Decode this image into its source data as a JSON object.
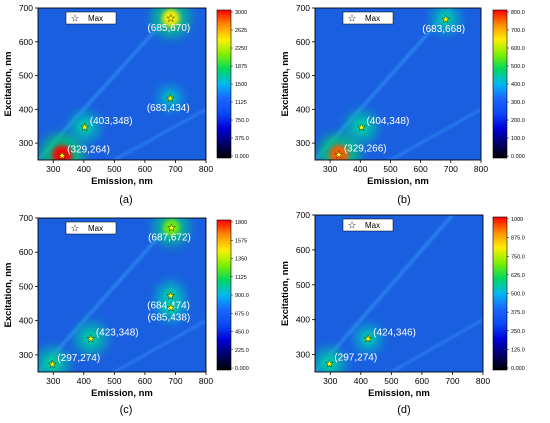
{
  "colors": {
    "background": "#1a5fe0",
    "colormap": [
      "#000000",
      "#00006a",
      "#0000d8",
      "#0b48f5",
      "#1a66ff",
      "#00b8f0",
      "#00d860",
      "#80f000",
      "#ffef00",
      "#ff8c00",
      "#ff0000"
    ],
    "marker": "#ffff00",
    "annotation": "#ffffff"
  },
  "chart_data": [
    {
      "type": "heatmap",
      "panel_label": "(a)",
      "xlabel": "Emission, nm",
      "ylabel": "Excitation, nm",
      "xlim": [
        250,
        800
      ],
      "ylim": [
        250,
        700
      ],
      "x_ticks": [
        "300",
        "400",
        "500",
        "600",
        "700",
        "800"
      ],
      "y_ticks": [
        "300",
        "400",
        "500",
        "600",
        "700"
      ],
      "legend": "Max",
      "colorbar_max": 3000,
      "colorbar_ticks": [
        "3000",
        "2625",
        "2250",
        "1875",
        "1500",
        "1125",
        "750.0",
        "375.0",
        "0.000"
      ],
      "peaks": [
        {
          "x": 329,
          "y": 264,
          "label": "(329,264)",
          "intensity": 3000
        },
        {
          "x": 403,
          "y": 348,
          "label": "(403,348)",
          "intensity": 1300
        },
        {
          "x": 683,
          "y": 434,
          "label": "(683,434)",
          "intensity": 600
        },
        {
          "x": 685,
          "y": 670,
          "label": "(685,670)",
          "intensity": 2400
        }
      ]
    },
    {
      "type": "heatmap",
      "panel_label": "(b)",
      "xlabel": "Emission, nm",
      "ylabel": "Excitation, nm",
      "xlim": [
        250,
        800
      ],
      "ylim": [
        250,
        700
      ],
      "x_ticks": [
        "300",
        "400",
        "500",
        "600",
        "700",
        "800"
      ],
      "y_ticks": [
        "300",
        "400",
        "500",
        "600",
        "700"
      ],
      "legend": "Max",
      "colorbar_max": 800,
      "colorbar_ticks": [
        "800.0",
        "700.0",
        "600.0",
        "500.0",
        "400.0",
        "300.0",
        "200.0",
        "100.0",
        "0.000"
      ],
      "peaks": [
        {
          "x": 329,
          "y": 266,
          "label": "(329,266)",
          "intensity": 750
        },
        {
          "x": 404,
          "y": 348,
          "label": "(404,348)",
          "intensity": 420
        },
        {
          "x": 683,
          "y": 668,
          "label": "(683,668)",
          "intensity": 320
        }
      ]
    },
    {
      "type": "heatmap",
      "panel_label": "(c)",
      "xlabel": "Emission, nm",
      "ylabel": "Excitation, nm",
      "xlim": [
        250,
        800
      ],
      "ylim": [
        250,
        700
      ],
      "x_ticks": [
        "300",
        "400",
        "500",
        "600",
        "700",
        "800"
      ],
      "y_ticks": [
        "300",
        "400",
        "500",
        "600",
        "700"
      ],
      "legend": "Max",
      "colorbar_max": 1800,
      "colorbar_ticks": [
        "1800",
        "1575",
        "1350",
        "1125",
        "900.0",
        "675.0",
        "450.0",
        "225.0",
        "0.000"
      ],
      "peaks": [
        {
          "x": 297,
          "y": 274,
          "label": "(297,274)",
          "intensity": 1000
        },
        {
          "x": 423,
          "y": 348,
          "label": "(423,348)",
          "intensity": 950
        },
        {
          "x": 684,
          "y": 474,
          "label": "(684,474)",
          "intensity": 650
        },
        {
          "x": 685,
          "y": 438,
          "label": "(685,438)",
          "intensity": 600
        },
        {
          "x": 687,
          "y": 672,
          "label": "(687,672)",
          "intensity": 1250
        }
      ]
    },
    {
      "type": "heatmap",
      "panel_label": "(d)",
      "xlabel": "Emission, nm",
      "ylabel": "Excitation, nm",
      "xlim": [
        250,
        800
      ],
      "ylim": [
        250,
        700
      ],
      "x_ticks": [
        "300",
        "400",
        "500",
        "600",
        "700",
        "800"
      ],
      "y_ticks": [
        "300",
        "400",
        "500",
        "600",
        "700"
      ],
      "legend": "Max",
      "colorbar_max": 1000,
      "colorbar_ticks": [
        "1000",
        "875.0",
        "750.0",
        "625.0",
        "500.0",
        "375.0",
        "250.0",
        "125.0",
        "0.000"
      ],
      "peaks": [
        {
          "x": 297,
          "y": 274,
          "label": "(297,274)",
          "intensity": 500
        },
        {
          "x": 424,
          "y": 346,
          "label": "(424,346)",
          "intensity": 330
        }
      ]
    }
  ]
}
